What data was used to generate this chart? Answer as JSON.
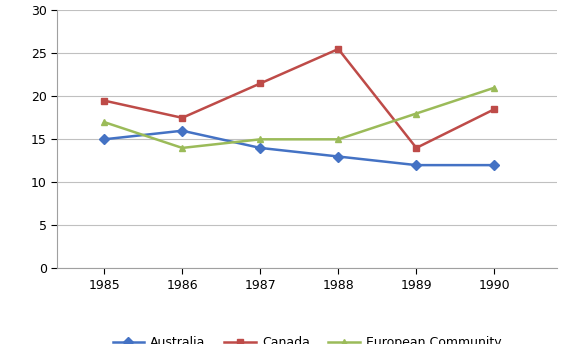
{
  "years": [
    1985,
    1986,
    1987,
    1988,
    1989,
    1990
  ],
  "australia": [
    15,
    16,
    14,
    13,
    12,
    12
  ],
  "canada": [
    19.5,
    17.5,
    21.5,
    25.5,
    14,
    18.5
  ],
  "european_community": [
    17,
    14,
    15,
    15,
    18,
    21
  ],
  "australia_color": "#4472C4",
  "canada_color": "#BE4B48",
  "ec_color": "#9BBB59",
  "ylim": [
    0,
    30
  ],
  "yticks": [
    0,
    5,
    10,
    15,
    20,
    25,
    30
  ],
  "background_color": "#FFFFFF",
  "grid_color": "#C0C0C0",
  "legend_labels": [
    "Australia",
    "Canada",
    "European Community"
  ],
  "linewidth": 1.8,
  "markersize": 5
}
